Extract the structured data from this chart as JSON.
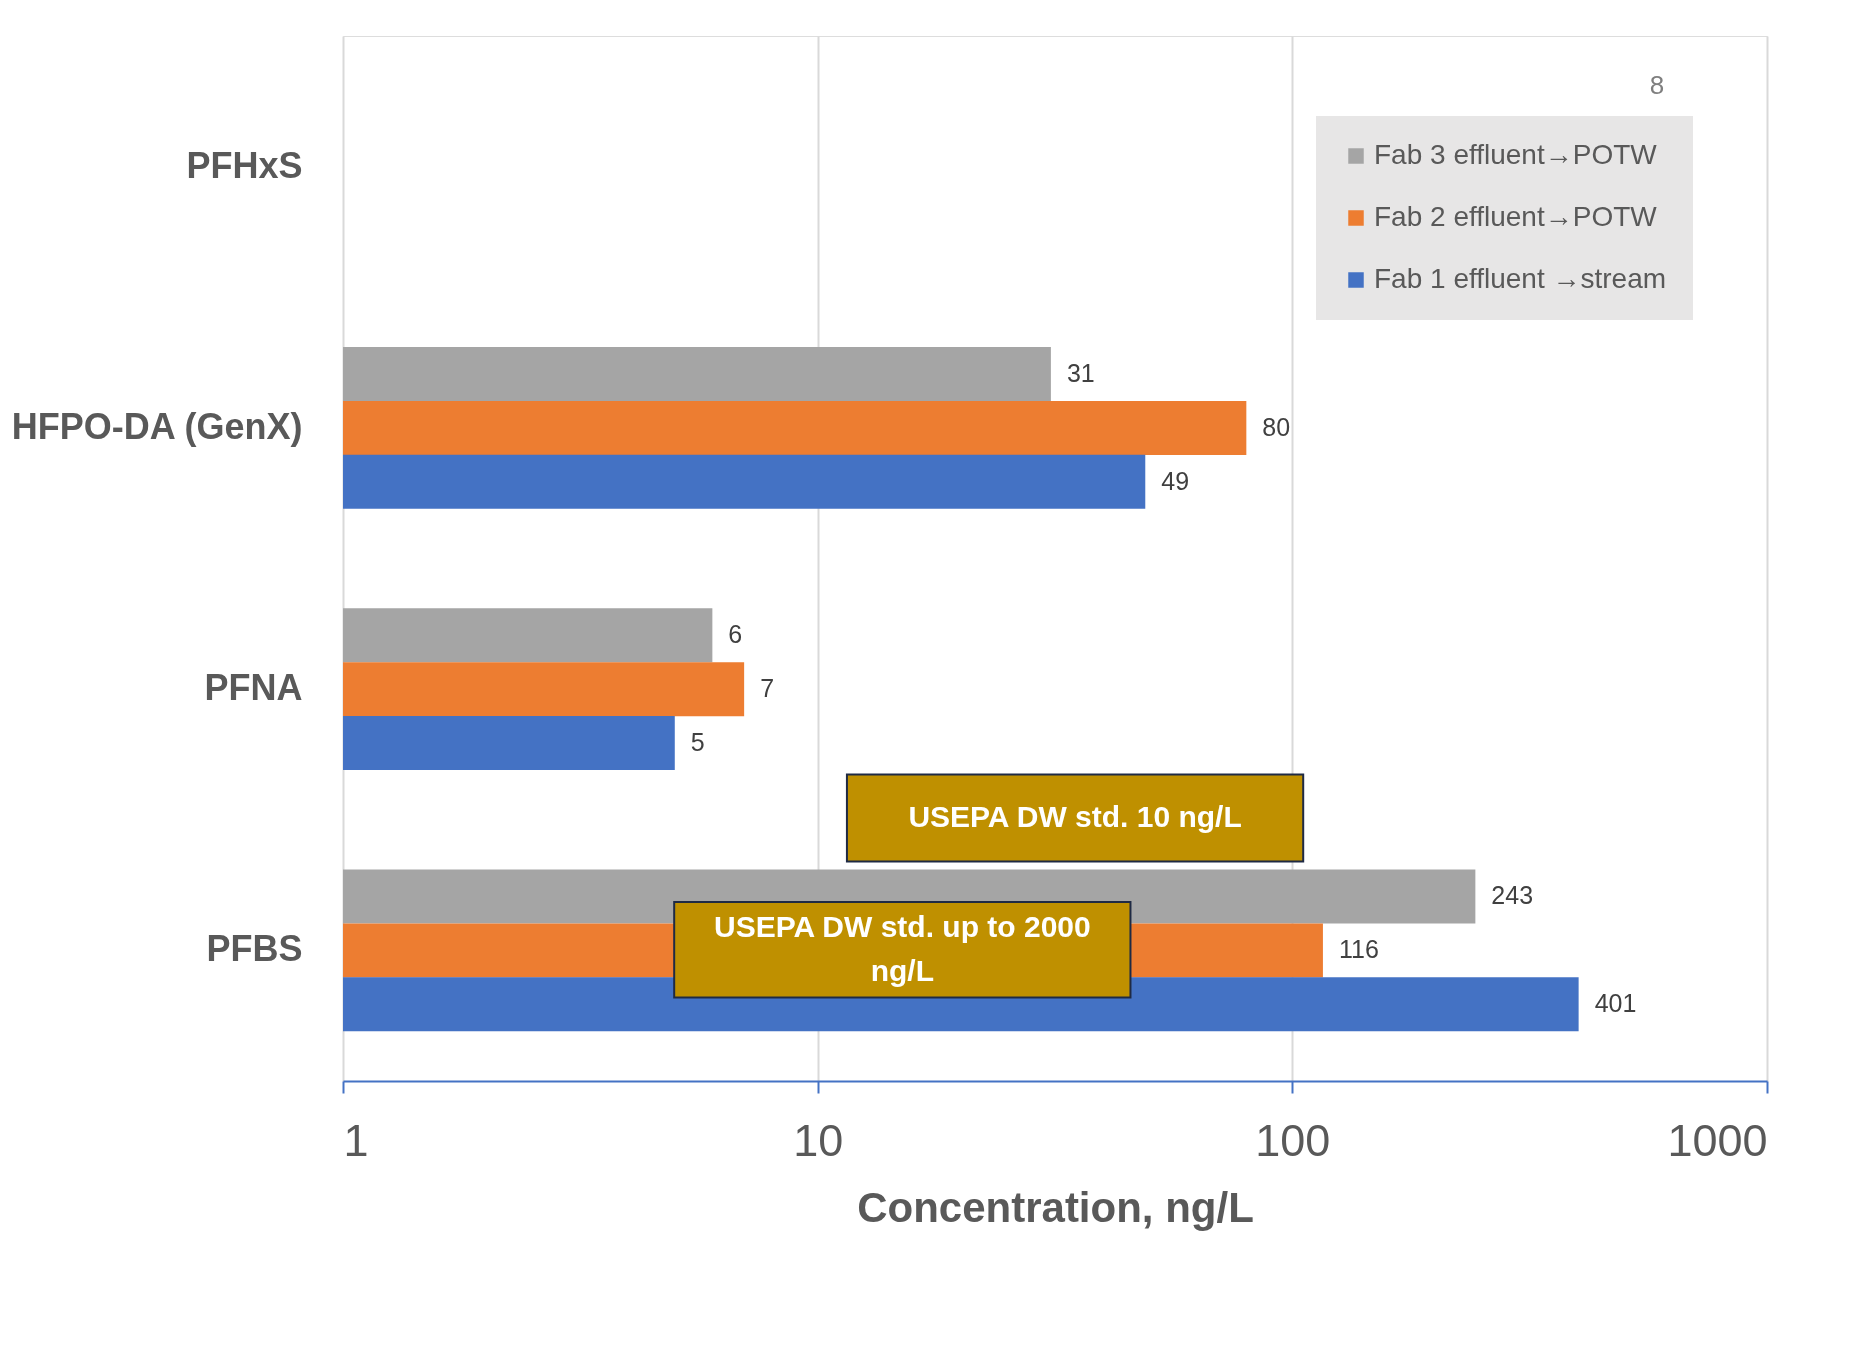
{
  "chart_data": {
    "type": "bar",
    "orientation": "horizontal",
    "xlabel": "Concentration, ng/L",
    "categories": [
      "PFHxS",
      "HFPO-DA (GenX)",
      "PFNA",
      "PFBS"
    ],
    "series": [
      {
        "name": "Fab 3 effluent→POTW",
        "color": "#a5a5a5",
        "values": [
          null,
          31,
          6,
          243
        ]
      },
      {
        "name": "Fab 2 effluent→POTW",
        "color": "#ed7d31",
        "values": [
          null,
          80,
          7,
          116
        ]
      },
      {
        "name": "Fab 1 effluent →stream",
        "color": "#4472c4",
        "values": [
          null,
          49,
          5,
          401
        ]
      }
    ],
    "log": "x",
    "xlim": [
      1,
      1000
    ],
    "xticks": [
      1,
      10,
      100,
      1000
    ],
    "grid": "x",
    "legend": "top right",
    "data_labels": true,
    "annotations": [
      "8",
      "USEPA DW std. 10 ng/L",
      "USEPA DW std. up to 2000 ng/L"
    ]
  }
}
